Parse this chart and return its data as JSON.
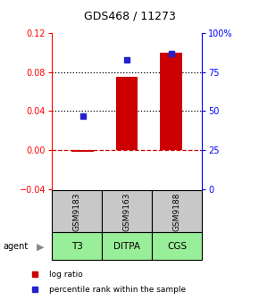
{
  "title": "GDS468 / 11273",
  "samples": [
    "GSM9183",
    "GSM9163",
    "GSM9188"
  ],
  "agents": [
    "T3",
    "DITPA",
    "CGS"
  ],
  "log_ratios": [
    -0.002,
    0.075,
    0.1
  ],
  "percentile_ranks": [
    47,
    83,
    87
  ],
  "left_ylim": [
    -0.04,
    0.12
  ],
  "left_yticks": [
    -0.04,
    0.0,
    0.04,
    0.08,
    0.12
  ],
  "right_ylim": [
    0,
    100
  ],
  "right_yticks": [
    0,
    25,
    50,
    75,
    100
  ],
  "right_yticklabels": [
    "0",
    "25",
    "50",
    "75",
    "100%"
  ],
  "bar_color": "#cc0000",
  "dot_color": "#2222cc",
  "hline_color": "#cc0000",
  "dotted_line_color": "#000000",
  "sample_bg_color": "#c8c8c8",
  "agent_bg_color": "#99ee99",
  "title_fontsize": 9,
  "tick_fontsize": 7,
  "legend_fontsize": 6.5,
  "bar_width": 0.5
}
